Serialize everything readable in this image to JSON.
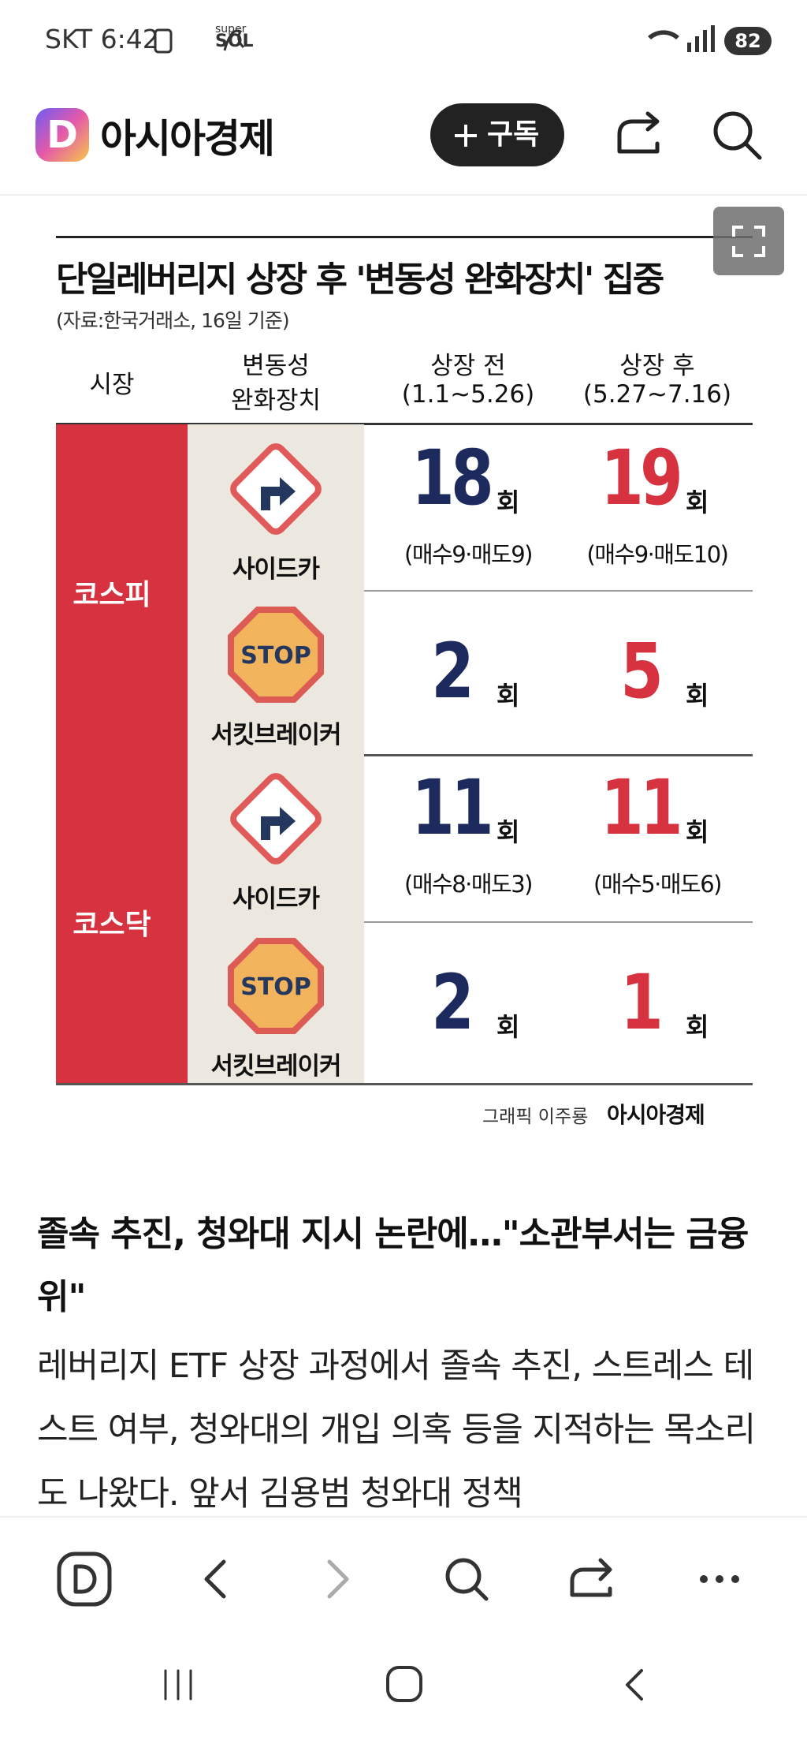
{
  "status_bar": {
    "carrier_time": "SKT 6:42",
    "app_super": "super",
    "app_sol": "SOL",
    "battery": "82"
  },
  "header": {
    "logo": "D",
    "site": "아시아경제",
    "subscribe": "구독"
  },
  "infographic": {
    "title": "단일레버리지 상장 후 '변동성 완화장치' 집중",
    "source": "(자료:한국거래소, 16일 기준)",
    "columns": {
      "market": "시장",
      "device": [
        "변동성",
        "완화장치"
      ],
      "before": [
        "상장 전",
        "(1.1~5.26)"
      ],
      "after": [
        "상장 후",
        "(5.27~7.16)"
      ]
    },
    "stop_sign": "STOP",
    "markets": [
      {
        "name": "코스피",
        "rows": [
          {
            "device": "사이드카",
            "before": {
              "count": 18,
              "unit": "회",
              "detail": "(매수9·매도9)"
            },
            "after": {
              "count": 19,
              "unit": "회",
              "detail": "(매수9·매도10)"
            }
          },
          {
            "device": "서킷브레이커",
            "before": {
              "count": 2,
              "unit": "회"
            },
            "after": {
              "count": 5,
              "unit": "회"
            }
          }
        ]
      },
      {
        "name": "코스닥",
        "rows": [
          {
            "device": "사이드카",
            "before": {
              "count": 11,
              "unit": "회",
              "detail": "(매수8·매도3)"
            },
            "after": {
              "count": 11,
              "unit": "회",
              "detail": "(매수5·매도6)"
            }
          },
          {
            "device": "서킷브레이커",
            "before": {
              "count": 2,
              "unit": "회"
            },
            "after": {
              "count": 1,
              "unit": "회"
            }
          }
        ]
      }
    ],
    "credit": {
      "designer": "그래픽 이주룡",
      "brand": "아시아경제"
    }
  },
  "article": {
    "heading": "졸속 추진, 청와대 지시 논란에…\"소관부서는 금융위\"",
    "body": "레버리지 ETF 상장 과정에서 졸속 추진, 스트레스 테스트 여부, 청와대의 개입 의혹 등을 지적하는 목소리도 나왔다. 앞서 김용범 청와대 정책"
  }
}
